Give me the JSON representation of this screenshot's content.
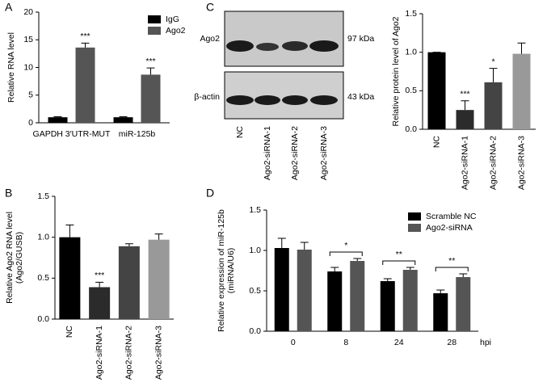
{
  "chart_data": [
    {
      "type": "bar",
      "panel": "A",
      "ylabel": [
        "Relative RNA level"
      ],
      "categories": [
        "GAPDH 3′UTR-MUT",
        "miR-125b"
      ],
      "series": [
        {
          "name": "IgG",
          "color": "#000000",
          "values": [
            1,
            1
          ],
          "errors": [
            0.1,
            0.1
          ],
          "annotations": [
            null,
            null
          ]
        },
        {
          "name": "Ago2",
          "color": "#555555",
          "values": [
            13.6,
            8.7
          ],
          "errors": [
            0.8,
            1.2
          ],
          "annotations": [
            "***",
            "***"
          ]
        }
      ],
      "ylim": [
        0,
        20
      ],
      "yticks": [
        0,
        5,
        10,
        15,
        20
      ],
      "legend": "top-right"
    },
    {
      "type": "bar",
      "panel": "B",
      "ylabel": [
        "Relative Ago2 RNA level",
        "(Ago2/GUSB)"
      ],
      "categories": [
        "NC",
        "Ago2-siRNA-1",
        "Ago2-siRNA-2",
        "Ago2-siRNA-3"
      ],
      "values": [
        1.0,
        0.39,
        0.89,
        0.97
      ],
      "errors": [
        0.15,
        0.06,
        0.03,
        0.07
      ],
      "annotations": [
        null,
        "***",
        null,
        null
      ],
      "colors": [
        "#000000",
        "#2b2b2b",
        "#444444",
        "#999999"
      ],
      "ylim": [
        0,
        1.5
      ],
      "yticks": [
        {
          "value": 0,
          "label": "0.0"
        },
        {
          "value": 0.5,
          "label": "0.5"
        },
        {
          "value": 1,
          "label": "1.0"
        },
        {
          "value": 1.5,
          "label": "1.5"
        }
      ]
    },
    {
      "type": "bar",
      "panel": "C",
      "ylabel": [
        "Relative protein level of Ago2"
      ],
      "categories": [
        "NC",
        "Ago2-siRNA-1",
        "Ago2-siRNA-2",
        "Ago2-siRNA-3"
      ],
      "values": [
        1.0,
        0.25,
        0.61,
        0.98
      ],
      "errors": [
        0,
        0.12,
        0.18,
        0.14
      ],
      "annotations": [
        null,
        "***",
        "*",
        null
      ],
      "colors": [
        "#000000",
        "#2b2b2b",
        "#444444",
        "#999999"
      ],
      "ylim": [
        0,
        1.5
      ],
      "yticks": [
        {
          "value": 0,
          "label": "0.0"
        },
        {
          "value": 0.5,
          "label": "0.5"
        },
        {
          "value": 1,
          "label": "1.0"
        },
        {
          "value": 1.5,
          "label": "1.5"
        }
      ]
    },
    {
      "type": "bar",
      "panel": "D",
      "ylabel": [
        "Relative expression of miR-125b",
        "(miRNA/U6)"
      ],
      "x_label": "hpi",
      "categories": [
        "0",
        "8",
        "24",
        "28"
      ],
      "series": [
        {
          "name": "Scramble NC",
          "color": "#000000",
          "values": [
            1.03,
            0.74,
            0.62,
            0.47
          ],
          "errors": [
            0.12,
            0.05,
            0.03,
            0.04
          ]
        },
        {
          "name": "Ago2-siRNA",
          "color": "#555555",
          "values": [
            1.01,
            0.87,
            0.76,
            0.67
          ],
          "errors": [
            0.09,
            0.03,
            0.03,
            0.04
          ]
        }
      ],
      "comparisons": [
        null,
        "*",
        "**",
        "**"
      ],
      "ylim": [
        0,
        1.5
      ],
      "yticks": [
        {
          "value": 0,
          "label": "0.0"
        },
        {
          "value": 0.5,
          "label": "0.5"
        },
        {
          "value": 1,
          "label": "1.0"
        },
        {
          "value": 1.5,
          "label": "1.5"
        }
      ],
      "legend": "top-right"
    }
  ],
  "blot": {
    "rows": [
      {
        "label": "Ago2",
        "size": "97 kDa"
      },
      {
        "label": "β-actin",
        "size": "43 kDa"
      }
    ],
    "lanes": [
      "NC",
      "Ago2-siRNA-1",
      "Ago2-siRNA-2",
      "Ago2-siRNA-3"
    ]
  }
}
